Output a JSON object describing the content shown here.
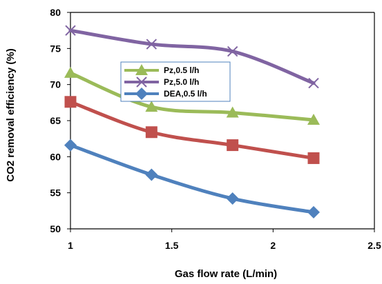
{
  "chart_data": {
    "type": "line",
    "title": "",
    "xlabel": "Gas flow rate (L/min)",
    "ylabel": "CO2 removal efficiency (%)",
    "xlim": [
      1,
      2.5
    ],
    "ylim": [
      50,
      80
    ],
    "xticks": [
      "1",
      "1.5",
      "2",
      "2.5"
    ],
    "yticks": [
      "50",
      "55",
      "60",
      "65",
      "70",
      "75",
      "80"
    ],
    "grid": false,
    "legend_position": "upper-middle",
    "series": [
      {
        "name": "Pz,5.0 l/h",
        "marker": "x",
        "color": "#8064a2",
        "x": [
          1,
          1.4,
          1.8,
          2.2
        ],
        "y": [
          77.5,
          75.6,
          74.6,
          70.2
        ]
      },
      {
        "name": "Pz,0.5 l/h",
        "marker": "triangle",
        "color": "#9bbb59",
        "x": [
          1,
          1.4,
          1.8,
          2.2
        ],
        "y": [
          71.6,
          66.9,
          66.1,
          65.1
        ]
      },
      {
        "name": "",
        "marker": "square",
        "color": "#c0504d",
        "x": [
          1,
          1.4,
          1.8,
          2.2
        ],
        "y": [
          67.6,
          63.4,
          61.6,
          59.8
        ]
      },
      {
        "name": "DEA,0.5 l/h",
        "marker": "diamond",
        "color": "#4f81bd",
        "x": [
          1,
          1.4,
          1.8,
          2.2
        ],
        "y": [
          61.6,
          57.5,
          54.2,
          52.3
        ]
      }
    ],
    "legend_order": [
      "Pz,0.5 l/h",
      "Pz,5.0 l/h",
      "DEA,0.5 l/h"
    ]
  }
}
